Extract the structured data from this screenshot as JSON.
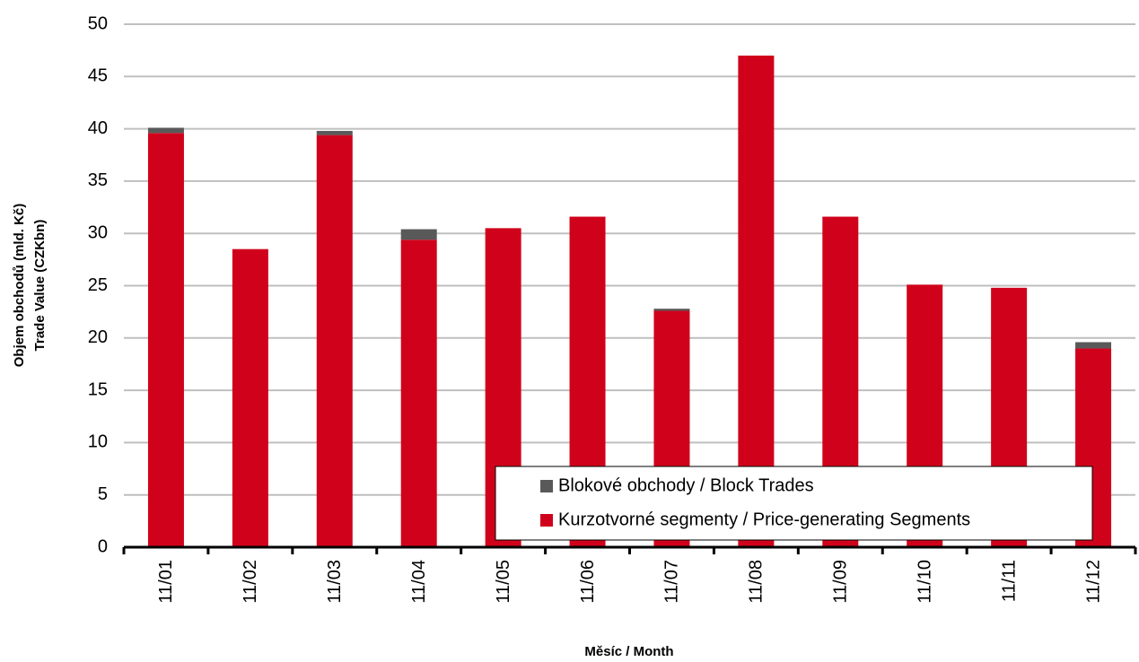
{
  "chart_data": {
    "type": "stacked_bar",
    "ylabel": [
      "Objem obchodů (mld. Kč)",
      "Trade Value (CZKbn)"
    ],
    "xlabel": "Měsíc / Month",
    "categories": [
      "11/01",
      "11/02",
      "11/03",
      "11/04",
      "11/05",
      "11/06",
      "11/07",
      "11/08",
      "11/09",
      "11/10",
      "11/11",
      "11/12"
    ],
    "series": [
      {
        "name": "Blokové obchody / Block Trades",
        "color": "#595959",
        "values": [
          0.5,
          0,
          0.4,
          1.0,
          0,
          0,
          0.2,
          0,
          0,
          0,
          0,
          0.6
        ]
      },
      {
        "name": "Kurzotvorné segmenty / Price-generating Segments",
        "color": "#d0021b",
        "values": [
          39.6,
          28.5,
          39.4,
          29.4,
          30.5,
          31.6,
          22.6,
          47.0,
          31.6,
          25.1,
          24.8,
          19.0
        ]
      }
    ],
    "ylim": [
      0,
      50
    ],
    "yticks": [
      0,
      5,
      10,
      15,
      20,
      25,
      30,
      35,
      40,
      45,
      50
    ],
    "grid": true,
    "legend": "lower right"
  }
}
